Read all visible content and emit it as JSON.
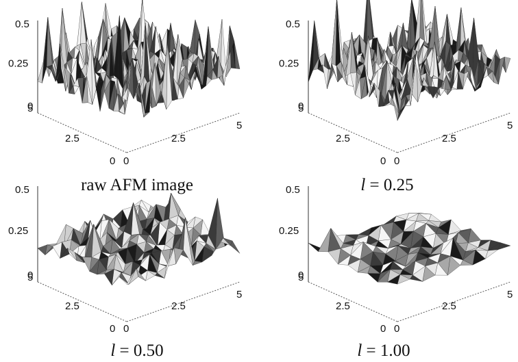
{
  "panels": [
    {
      "id": "raw",
      "caption": "raw AFM image",
      "caption_italic": false,
      "z_ticks": [
        "0.5",
        "0.25",
        "0"
      ],
      "y_ticks": [
        "5",
        "2.5",
        "0"
      ],
      "x_ticks": [
        "0",
        "2.5",
        "5"
      ],
      "roughness": 1.0,
      "spikiness": 1.0,
      "facet_size": 0.22,
      "peak": 0.5
    },
    {
      "id": "l025",
      "caption": "l = 0.25",
      "caption_italic": true,
      "z_ticks": [
        "0.5",
        "0.25",
        "0"
      ],
      "y_ticks": [
        "5",
        "2.5",
        "0"
      ],
      "x_ticks": [
        "0",
        "2.5",
        "5"
      ],
      "roughness": 0.9,
      "spikiness": 0.9,
      "facet_size": 0.25,
      "peak": 0.5
    },
    {
      "id": "l050",
      "caption": "l = 0.50",
      "caption_italic": true,
      "z_ticks": [
        "0.5",
        "0.25",
        "0"
      ],
      "y_ticks": [
        "5",
        "2.5",
        "0"
      ],
      "x_ticks": [
        "0",
        "2.5",
        "5"
      ],
      "roughness": 0.55,
      "spikiness": 0.6,
      "facet_size": 0.55,
      "peak": 0.3
    },
    {
      "id": "l100",
      "caption": "l = 1.00",
      "caption_italic": true,
      "z_ticks": [
        "0.5",
        "0.25",
        "0"
      ],
      "y_ticks": [
        "5",
        "2.5",
        "0"
      ],
      "x_ticks": [
        "0",
        "2.5",
        "5"
      ],
      "roughness": 0.3,
      "spikiness": 0.3,
      "facet_size": 0.9,
      "peak": 0.18
    }
  ]
}
